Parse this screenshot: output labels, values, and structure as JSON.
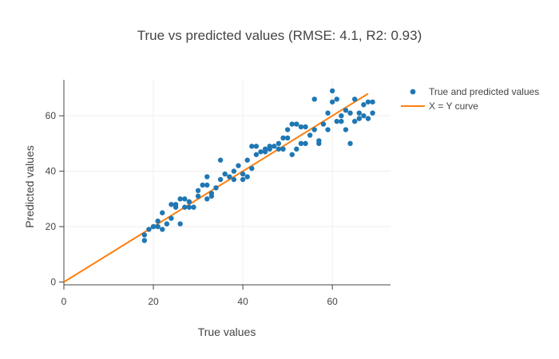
{
  "chart_data": {
    "type": "scatter",
    "title": "True vs predicted values (RMSE: 4.1, R2: 0.93)",
    "xlabel": "True values",
    "ylabel": "Predicted values",
    "xlim": [
      0,
      73
    ],
    "ylim": [
      -1,
      73
    ],
    "x_ticks": [
      0,
      20,
      40,
      60
    ],
    "y_ticks": [
      0,
      20,
      40,
      60
    ],
    "x_tick_labels": [
      "0",
      "20",
      "40",
      "60"
    ],
    "y_tick_labels": [
      "0",
      "20",
      "40",
      "60"
    ],
    "grid": true,
    "legend_position": "top-right",
    "colors": {
      "scatter": "#1f77b4",
      "line": "#ff7f0e",
      "grid": "#eeeeee",
      "axis": "#444444",
      "text": "#444444"
    },
    "series": [
      {
        "name": "True and predicted values",
        "type": "scatter",
        "points": [
          [
            18,
            15
          ],
          [
            18,
            17
          ],
          [
            19,
            19
          ],
          [
            20,
            20
          ],
          [
            21,
            22
          ],
          [
            21,
            20
          ],
          [
            22,
            25
          ],
          [
            22,
            19
          ],
          [
            23,
            21
          ],
          [
            24,
            23
          ],
          [
            24,
            28
          ],
          [
            25,
            28
          ],
          [
            25,
            27
          ],
          [
            26,
            21
          ],
          [
            26,
            30
          ],
          [
            27,
            30
          ],
          [
            27,
            27
          ],
          [
            28,
            27
          ],
          [
            28,
            29
          ],
          [
            29,
            27
          ],
          [
            30,
            31
          ],
          [
            30,
            33
          ],
          [
            31,
            35
          ],
          [
            32,
            38
          ],
          [
            32,
            30
          ],
          [
            32,
            35
          ],
          [
            33,
            31
          ],
          [
            33,
            32
          ],
          [
            34,
            34
          ],
          [
            35,
            37
          ],
          [
            35,
            44
          ],
          [
            36,
            39
          ],
          [
            37,
            38
          ],
          [
            38,
            37
          ],
          [
            38,
            40
          ],
          [
            39,
            42
          ],
          [
            40,
            37
          ],
          [
            40,
            39
          ],
          [
            41,
            38
          ],
          [
            41,
            44
          ],
          [
            42,
            41
          ],
          [
            42,
            49
          ],
          [
            43,
            46
          ],
          [
            43,
            49
          ],
          [
            44,
            47
          ],
          [
            45,
            47
          ],
          [
            45,
            48
          ],
          [
            46,
            48
          ],
          [
            46,
            49
          ],
          [
            47,
            49
          ],
          [
            48,
            48
          ],
          [
            48,
            50
          ],
          [
            49,
            48
          ],
          [
            49,
            52
          ],
          [
            50,
            52
          ],
          [
            50,
            55
          ],
          [
            51,
            46
          ],
          [
            51,
            57
          ],
          [
            52,
            48
          ],
          [
            52,
            57
          ],
          [
            53,
            50
          ],
          [
            53,
            56
          ],
          [
            54,
            50
          ],
          [
            54,
            56
          ],
          [
            55,
            53
          ],
          [
            56,
            55
          ],
          [
            56,
            66
          ],
          [
            57,
            50
          ],
          [
            57,
            51
          ],
          [
            58,
            57
          ],
          [
            59,
            55
          ],
          [
            59,
            61
          ],
          [
            60,
            65
          ],
          [
            60,
            69
          ],
          [
            61,
            58
          ],
          [
            61,
            66
          ],
          [
            62,
            58
          ],
          [
            62,
            60
          ],
          [
            63,
            62
          ],
          [
            63,
            55
          ],
          [
            64,
            61
          ],
          [
            64,
            50
          ],
          [
            65,
            58
          ],
          [
            65,
            66
          ],
          [
            66,
            59
          ],
          [
            66,
            61
          ],
          [
            67,
            60
          ],
          [
            67,
            64
          ],
          [
            68,
            59
          ],
          [
            68,
            65
          ],
          [
            69,
            65
          ],
          [
            69,
            61
          ]
        ]
      },
      {
        "name": "X = Y curve",
        "type": "line",
        "x": [
          0,
          68
        ],
        "y": [
          0,
          68
        ]
      }
    ]
  }
}
